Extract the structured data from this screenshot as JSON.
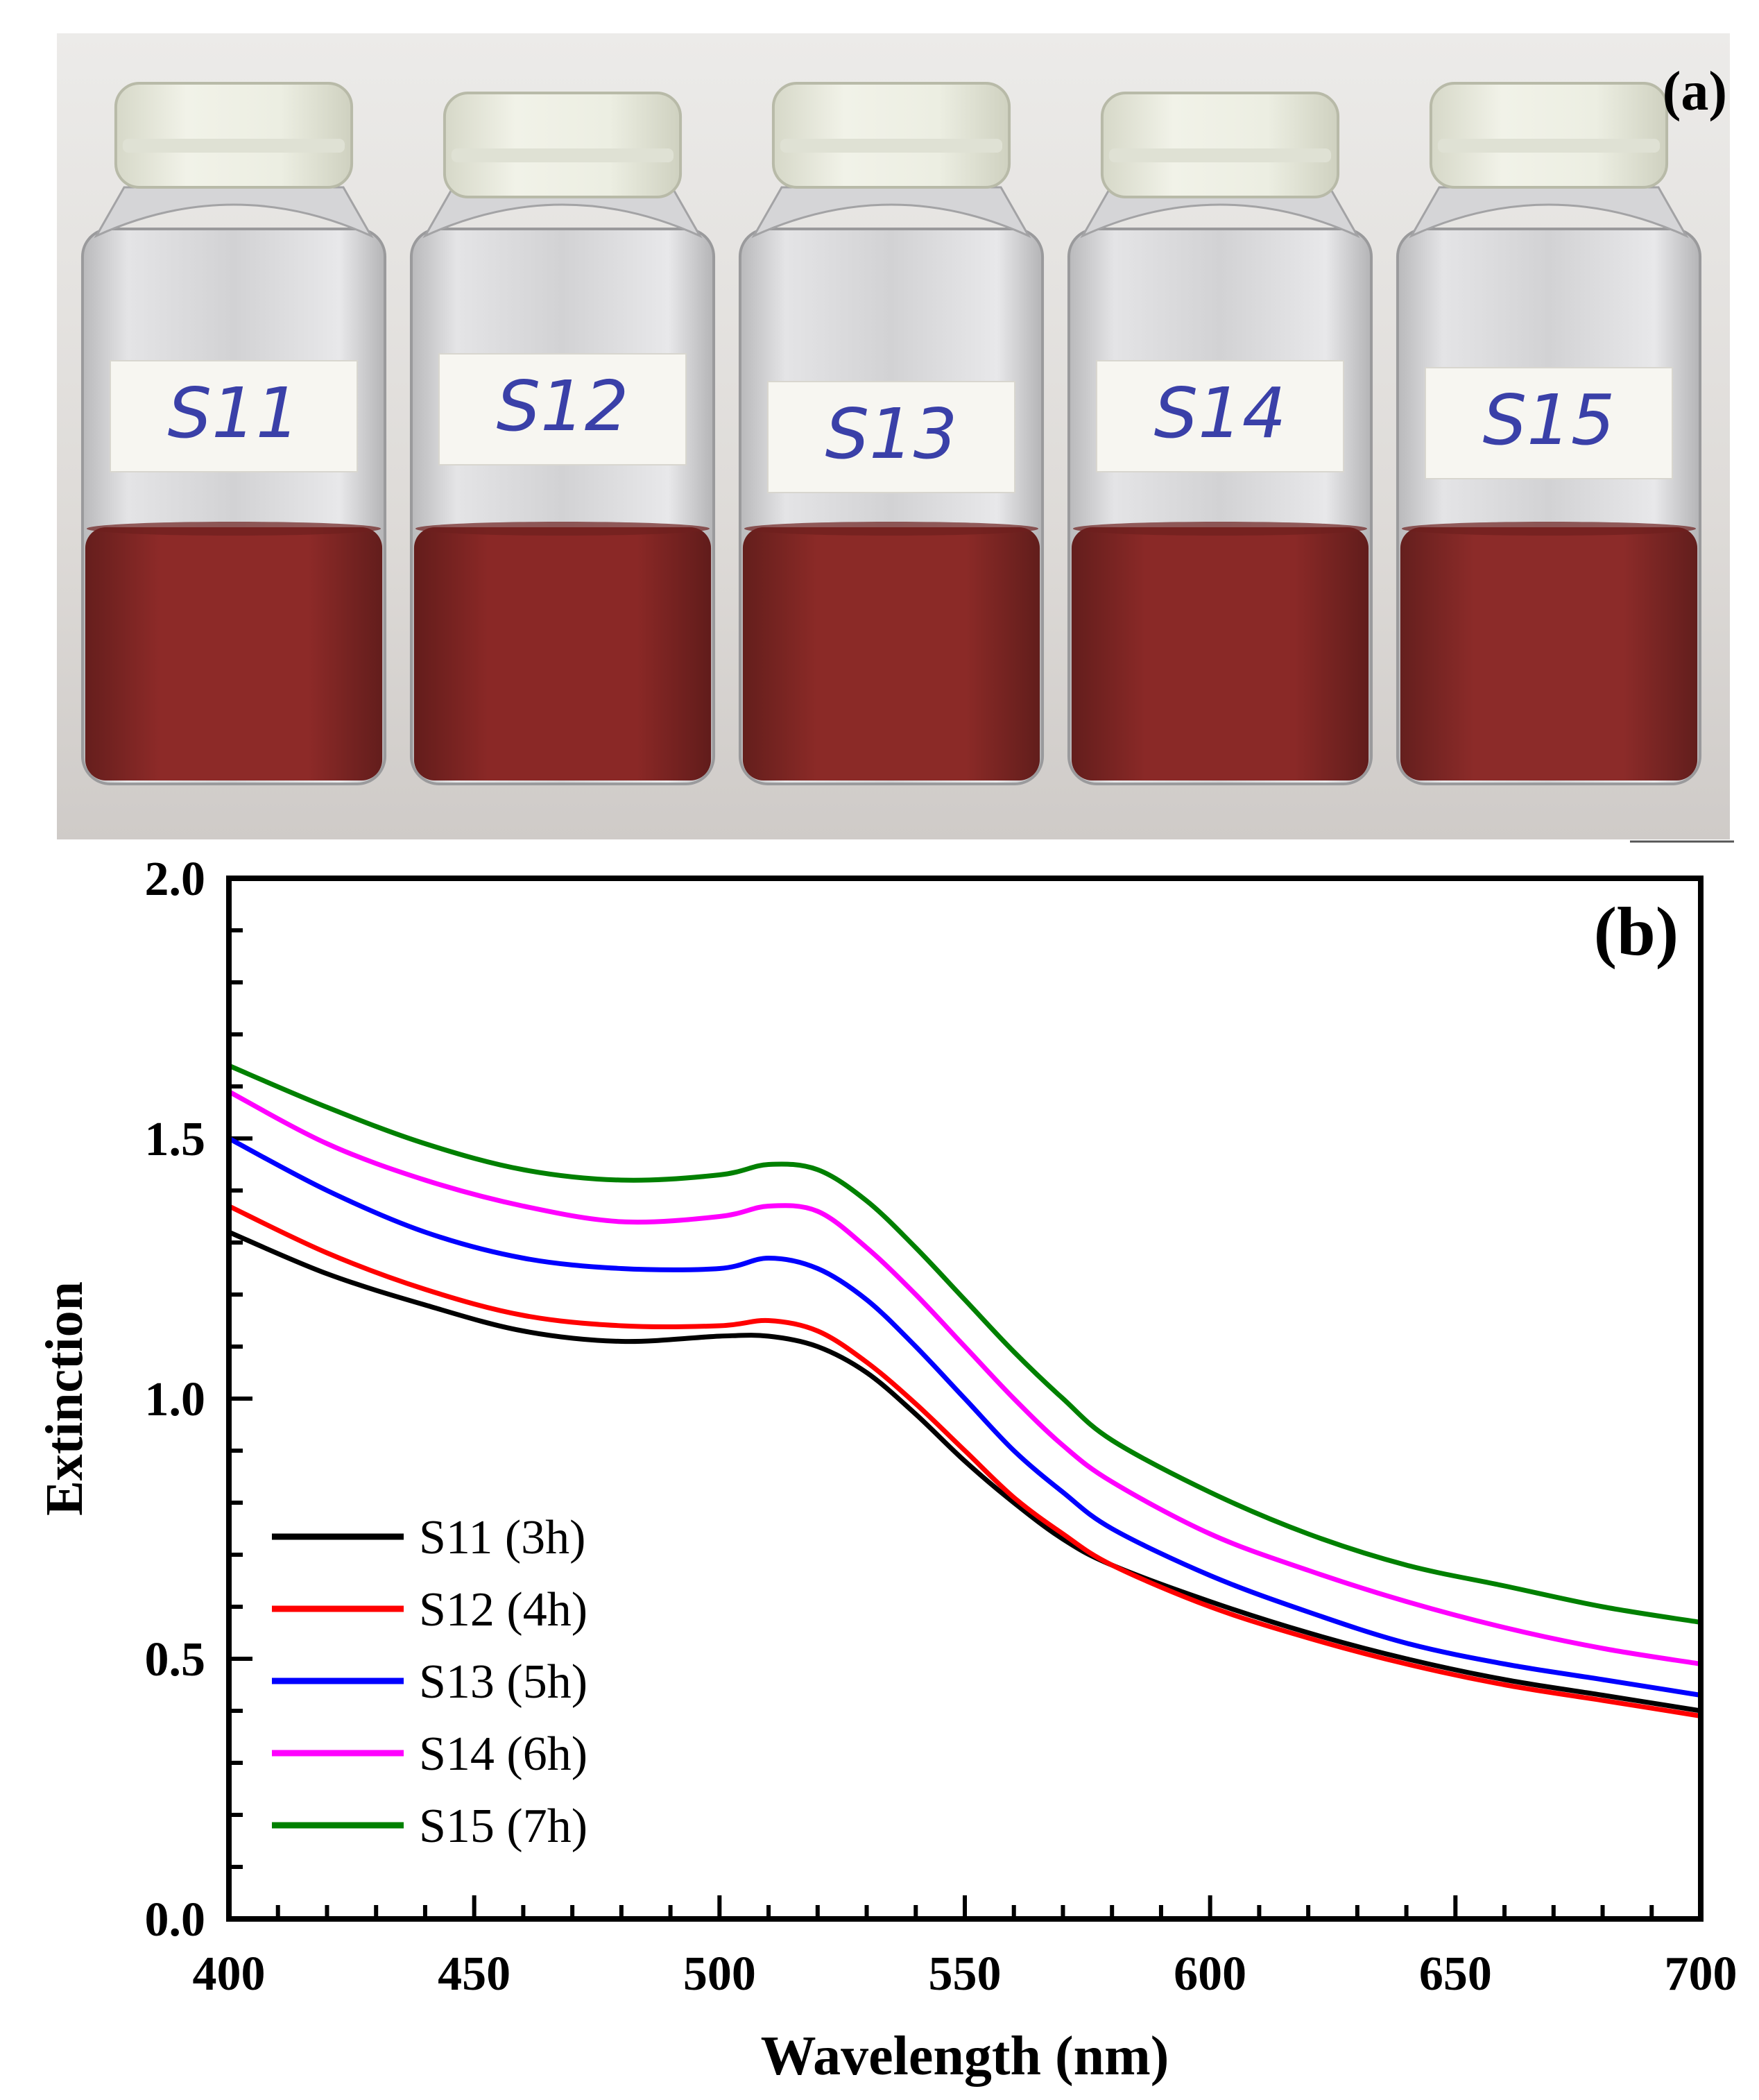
{
  "photo": {
    "panel_label": "(a)",
    "vials": [
      {
        "label": "S11",
        "liquid": "#8d2a28"
      },
      {
        "label": "S12",
        "liquid": "#8a2826"
      },
      {
        "label": "S13",
        "liquid": "#8b2a27"
      },
      {
        "label": "S14",
        "liquid": "#8a2927"
      },
      {
        "label": "S15",
        "liquid": "#8c2b29"
      }
    ],
    "colors": {
      "background": "#e9e6e3",
      "glass": "#dcdcdc",
      "cap": "#e8eadf",
      "label_ink": "#3a40a8",
      "label_paper": "#f7f6f1"
    }
  },
  "chart_data": {
    "type": "line",
    "panel_label": "(b)",
    "xlabel": "Wavelength (nm)",
    "ylabel": "Extinction",
    "xlim": [
      400,
      700
    ],
    "ylim": [
      0.0,
      2.0
    ],
    "xticks": [
      400,
      450,
      500,
      550,
      600,
      650,
      700
    ],
    "yticks": [
      0.0,
      0.5,
      1.0,
      1.5,
      2.0
    ],
    "ytick_labels": [
      "0.0",
      "0.5",
      "1.0",
      "1.5",
      "2.0"
    ],
    "legend_position": "bottom-left",
    "grid": false,
    "x": [
      400,
      420,
      440,
      460,
      480,
      500,
      510,
      520,
      530,
      540,
      550,
      560,
      570,
      580,
      600,
      620,
      640,
      660,
      680,
      700
    ],
    "series": [
      {
        "name": "S11 (3h)",
        "color": "#000000",
        "values": [
          1.32,
          1.24,
          1.18,
          1.13,
          1.11,
          1.12,
          1.12,
          1.1,
          1.05,
          0.97,
          0.88,
          0.8,
          0.73,
          0.68,
          0.61,
          0.55,
          0.5,
          0.46,
          0.43,
          0.4
        ]
      },
      {
        "name": "S12 (4h)",
        "color": "#ff0000",
        "values": [
          1.37,
          1.28,
          1.21,
          1.16,
          1.14,
          1.14,
          1.15,
          1.13,
          1.07,
          0.99,
          0.9,
          0.81,
          0.74,
          0.68,
          0.6,
          0.54,
          0.49,
          0.45,
          0.42,
          0.39
        ]
      },
      {
        "name": "S13 (5h)",
        "color": "#0000ff",
        "values": [
          1.5,
          1.4,
          1.32,
          1.27,
          1.25,
          1.25,
          1.27,
          1.25,
          1.19,
          1.1,
          1.0,
          0.9,
          0.82,
          0.75,
          0.66,
          0.59,
          0.53,
          0.49,
          0.46,
          0.43
        ]
      },
      {
        "name": "S14 (6h)",
        "color": "#ff00ff",
        "values": [
          1.59,
          1.49,
          1.42,
          1.37,
          1.34,
          1.35,
          1.37,
          1.36,
          1.29,
          1.2,
          1.1,
          1.0,
          0.91,
          0.84,
          0.74,
          0.67,
          0.61,
          0.56,
          0.52,
          0.49
        ]
      },
      {
        "name": "S15 (7h)",
        "color": "#008000",
        "values": [
          1.64,
          1.56,
          1.49,
          1.44,
          1.42,
          1.43,
          1.45,
          1.44,
          1.38,
          1.29,
          1.19,
          1.09,
          1.0,
          0.92,
          0.82,
          0.74,
          0.68,
          0.64,
          0.6,
          0.57
        ]
      }
    ]
  }
}
